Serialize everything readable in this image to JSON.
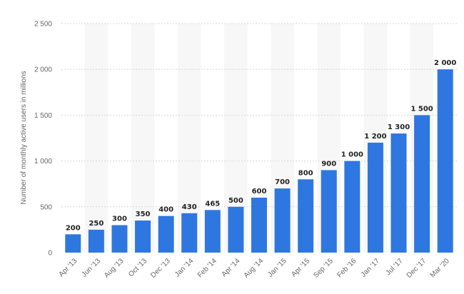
{
  "chart_data": {
    "type": "bar",
    "title": "",
    "xlabel": "",
    "ylabel": "Number of monthly active users in millions",
    "categories": [
      "Apr '13",
      "Jun '13",
      "Aug '13",
      "Oct '13",
      "Dec '13",
      "Jan '14",
      "Feb '14",
      "Apr '14",
      "Aug '14",
      "Jan '15",
      "Apr '15",
      "Sep '15",
      "Feb '16",
      "Jan '17",
      "Jul '17",
      "Dec '17",
      "Mar '20"
    ],
    "values": [
      200,
      250,
      300,
      350,
      400,
      430,
      465,
      500,
      600,
      700,
      800,
      900,
      1000,
      1200,
      1300,
      1500,
      2000
    ],
    "value_labels": [
      "200",
      "250",
      "300",
      "350",
      "400",
      "430",
      "465",
      "500",
      "600",
      "700",
      "800",
      "900",
      "1 000",
      "1 200",
      "1 300",
      "1 500",
      "2 000"
    ],
    "ylim": [
      0,
      2500
    ],
    "yticks": [
      0,
      500,
      1000,
      1500,
      2000,
      2500
    ],
    "ytick_labels": [
      "0",
      "500",
      "1 000",
      "1 500",
      "2 000",
      "2 500"
    ],
    "grid": true,
    "legend": "none",
    "colors": {
      "bar": "#2f77e0",
      "stripe": "#f7f7f7",
      "grid": "#d7d7d7"
    }
  }
}
